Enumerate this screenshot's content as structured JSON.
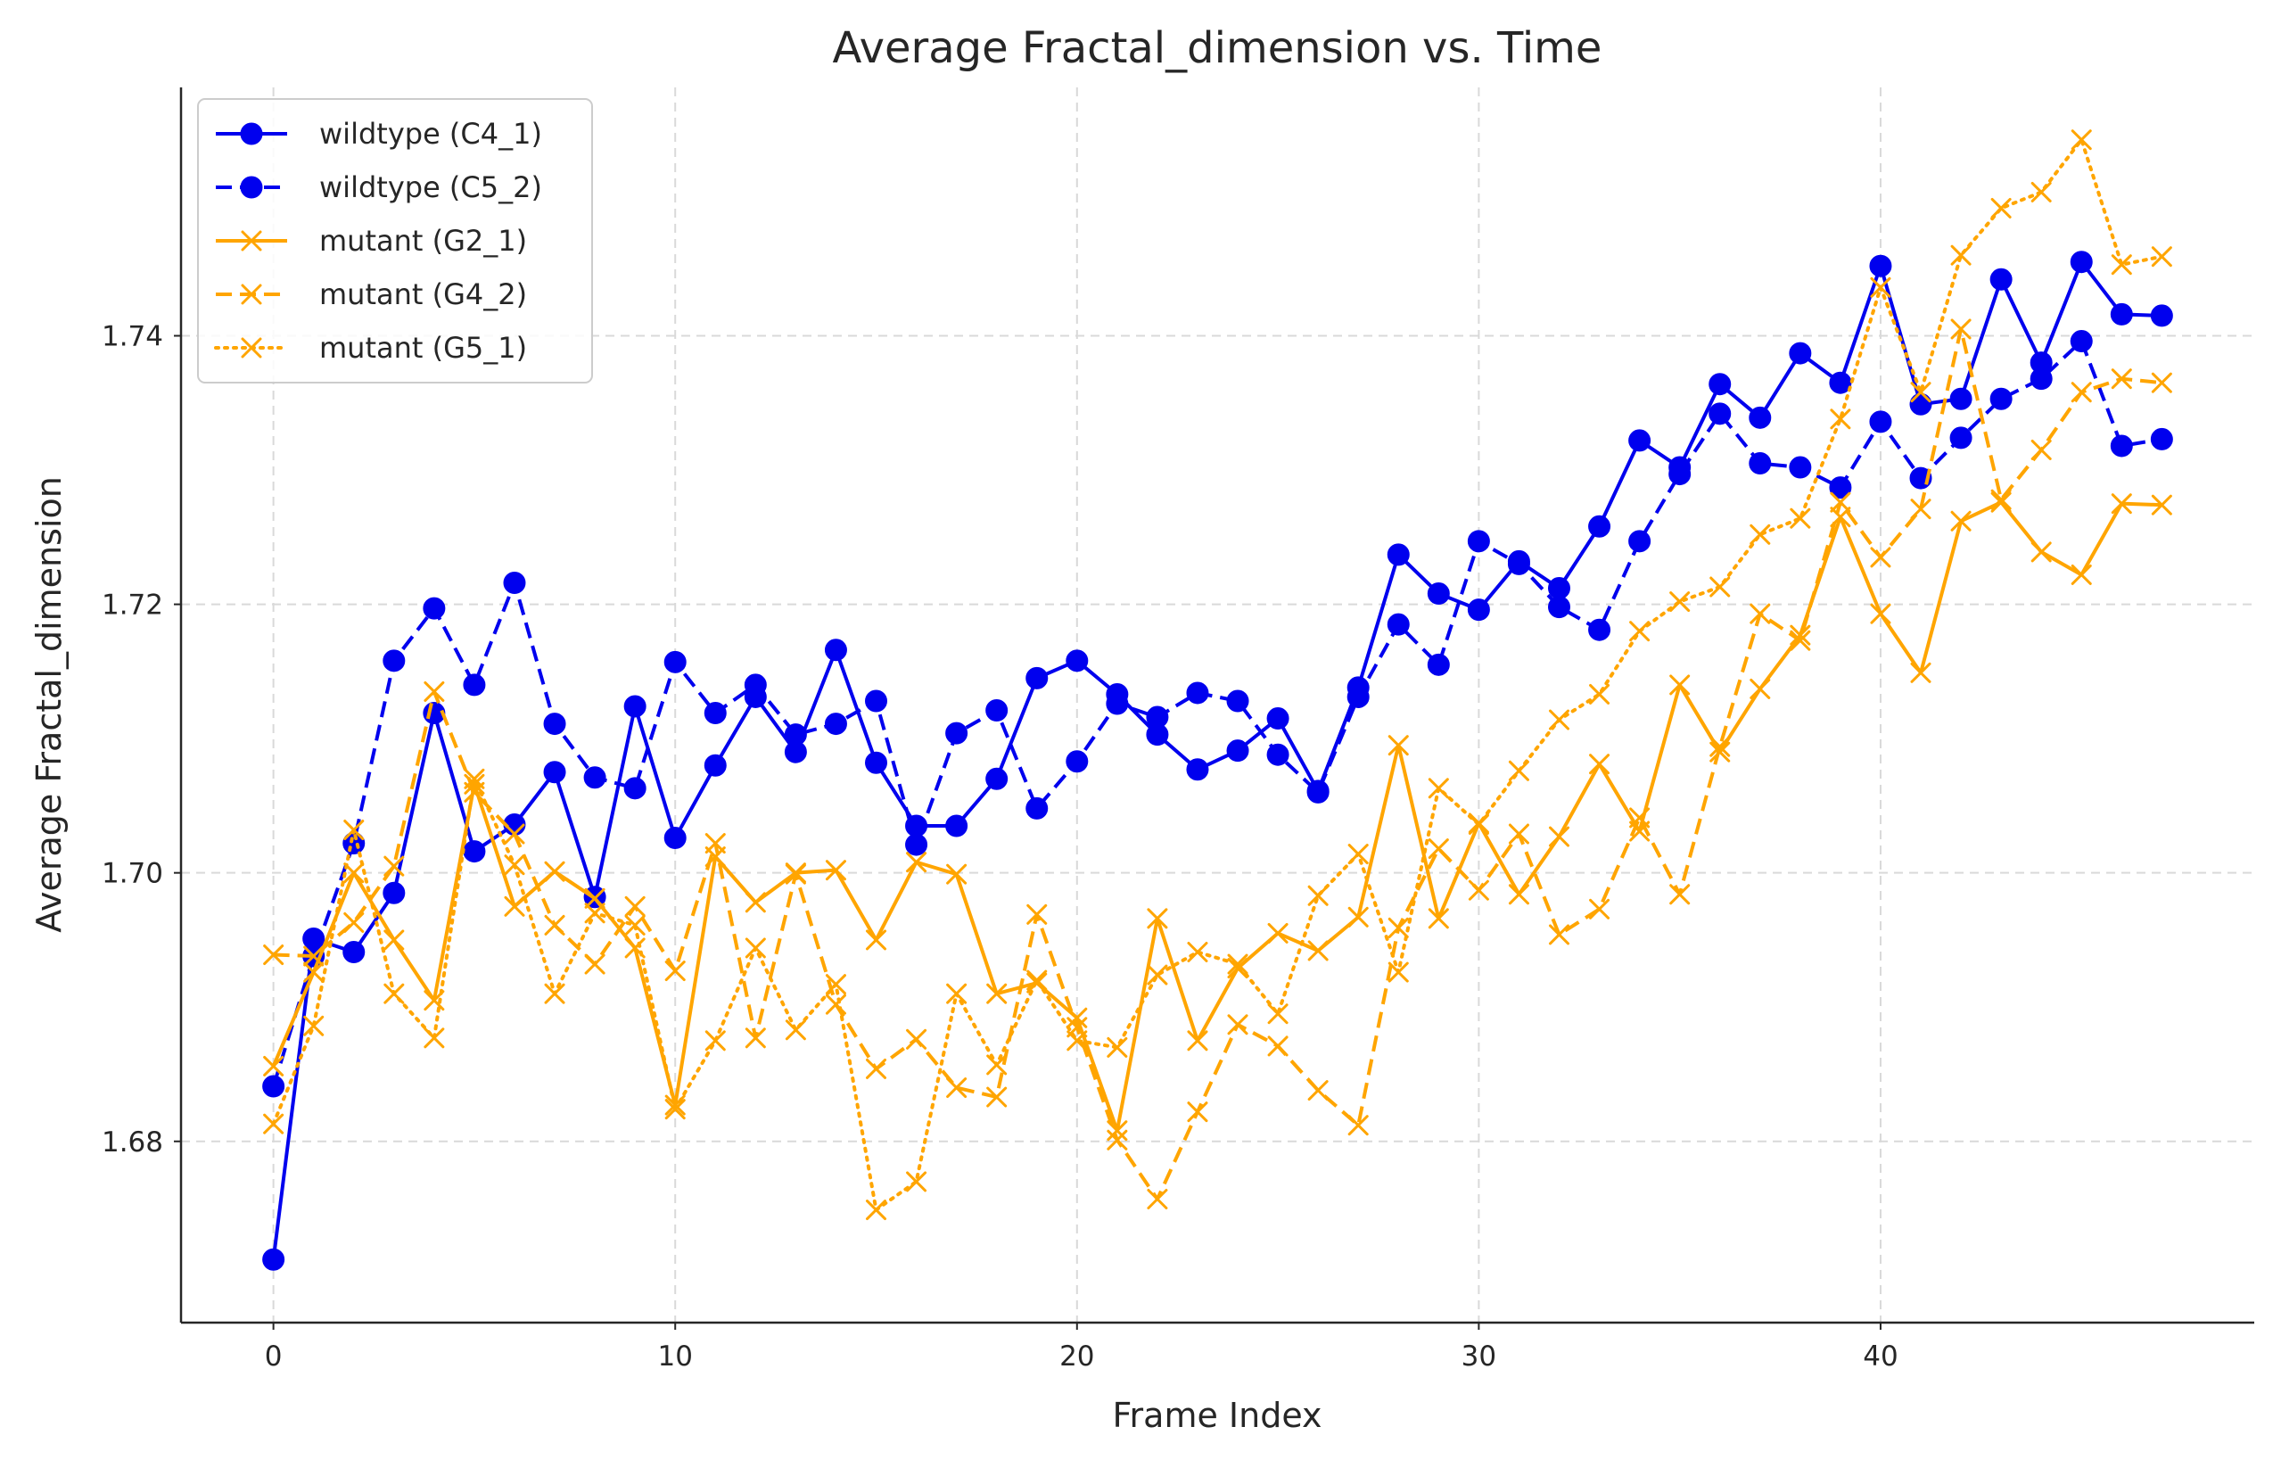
{
  "chart_data": {
    "type": "line",
    "title": "Average Fractal_dimension vs. Time",
    "xlabel": "Frame Index",
    "ylabel": "Average Fractal_dimension",
    "xlim": [
      -2.3,
      49.3
    ],
    "ylim": [
      1.6665,
      1.7585
    ],
    "xticks": [
      0,
      10,
      20,
      30,
      40
    ],
    "yticks": [
      1.68,
      1.7,
      1.72,
      1.74
    ],
    "ytick_labels": [
      "1.68",
      "1.70",
      "1.72",
      "1.74"
    ],
    "grid": true,
    "legend_position": "top-left",
    "x": [
      0,
      1,
      2,
      3,
      4,
      5,
      6,
      7,
      8,
      9,
      10,
      11,
      12,
      13,
      14,
      15,
      16,
      17,
      18,
      19,
      20,
      21,
      22,
      23,
      24,
      25,
      26,
      27,
      28,
      29,
      30,
      31,
      32,
      33,
      34,
      35,
      36,
      37,
      38,
      39,
      40,
      41,
      42,
      43,
      44,
      45,
      46,
      47
    ],
    "series": [
      {
        "name": "wildtype (C4_1)",
        "color": "#0000ee",
        "linestyle": "solid",
        "marker": "circle",
        "values": [
          1.6712,
          1.6951,
          1.6941,
          1.6985,
          1.7119,
          1.7016,
          1.7036,
          1.7075,
          1.6982,
          1.7124,
          1.7026,
          1.708,
          1.7131,
          1.709,
          1.7166,
          1.7082,
          1.7035,
          1.7035,
          1.707,
          1.7145,
          1.7158,
          1.7133,
          1.7103,
          1.7077,
          1.7091,
          1.7115,
          1.7061,
          1.7138,
          1.7237,
          1.7208,
          1.7196,
          1.7232,
          1.7212,
          1.7258,
          1.7322,
          1.7302,
          1.7364,
          1.7339,
          1.7387,
          1.7365,
          1.7452,
          1.7349,
          1.7353,
          1.7442,
          1.738,
          1.7455,
          1.7416,
          1.7415
        ]
      },
      {
        "name": "wildtype (C5_2)",
        "color": "#0000ee",
        "linestyle": "dashed",
        "marker": "circle",
        "values": [
          1.6841,
          1.6938,
          1.7022,
          1.7158,
          1.7197,
          1.714,
          1.7216,
          1.7111,
          1.7071,
          1.7063,
          1.7157,
          1.7119,
          1.714,
          1.7103,
          1.7111,
          1.7128,
          1.7021,
          1.7104,
          1.7121,
          1.7048,
          1.7083,
          1.7126,
          1.7116,
          1.7134,
          1.7128,
          1.7088,
          1.706,
          1.7131,
          1.7185,
          1.7155,
          1.7247,
          1.723,
          1.7198,
          1.7181,
          1.7247,
          1.7297,
          1.7342,
          1.7305,
          1.7302,
          1.7287,
          1.7336,
          1.7294,
          1.7324,
          1.7353,
          1.7368,
          1.7396,
          1.7318,
          1.7323
        ]
      },
      {
        "name": "mutant (G2_1)",
        "color": "#ffa500",
        "linestyle": "solid",
        "marker": "x",
        "values": [
          1.6856,
          1.6926,
          1.7,
          1.695,
          1.6905,
          1.7066,
          1.6975,
          1.7001,
          1.6981,
          1.6944,
          1.6827,
          1.7012,
          1.6978,
          1.7,
          1.7002,
          1.695,
          1.7008,
          1.6999,
          1.691,
          1.6918,
          1.6892,
          1.6808,
          1.6966,
          1.6875,
          1.6929,
          1.6955,
          1.6942,
          1.6967,
          1.7095,
          1.6966,
          1.7037,
          1.6984,
          1.7027,
          1.7081,
          1.7031,
          1.714,
          1.709,
          1.7137,
          1.7177,
          1.7265,
          1.7193,
          1.7149,
          1.7262,
          1.7276,
          1.7239,
          1.7222,
          1.7275,
          1.7274
        ]
      },
      {
        "name": "mutant (G4_2)",
        "color": "#ffa500",
        "linestyle": "dashed",
        "marker": "x",
        "values": [
          1.6939,
          1.6938,
          1.6963,
          1.7005,
          1.7135,
          1.706,
          1.7029,
          1.6961,
          1.6932,
          1.6975,
          1.6927,
          1.7022,
          1.6877,
          1.6999,
          1.6902,
          1.6854,
          1.6876,
          1.684,
          1.6833,
          1.6969,
          1.6885,
          1.6801,
          1.6757,
          1.6822,
          1.6887,
          1.6871,
          1.6838,
          1.6812,
          1.6959,
          1.7018,
          1.6987,
          1.7029,
          1.6954,
          1.6973,
          1.7041,
          1.6984,
          1.7094,
          1.7193,
          1.7173,
          1.7276,
          1.7235,
          1.7271,
          1.7405,
          1.7278,
          1.7315,
          1.7358,
          1.7368,
          1.7365
        ]
      },
      {
        "name": "mutant (G5_1)",
        "color": "#ffa500",
        "linestyle": "dotted",
        "marker": "x",
        "values": [
          1.6813,
          1.6886,
          1.7032,
          1.691,
          1.6877,
          1.707,
          1.7006,
          1.691,
          1.697,
          1.6961,
          1.6824,
          1.6875,
          1.6944,
          1.6883,
          1.6917,
          1.6749,
          1.677,
          1.691,
          1.6857,
          1.692,
          1.6875,
          1.687,
          1.6924,
          1.6941,
          1.6932,
          1.6895,
          1.6983,
          1.7014,
          1.6926,
          1.7063,
          1.7036,
          1.7076,
          1.7114,
          1.7133,
          1.718,
          1.7202,
          1.7213,
          1.7252,
          1.7264,
          1.7338,
          1.7436,
          1.7358,
          1.746,
          1.7495,
          1.7507,
          1.7546,
          1.7453,
          1.7459
        ]
      }
    ]
  }
}
